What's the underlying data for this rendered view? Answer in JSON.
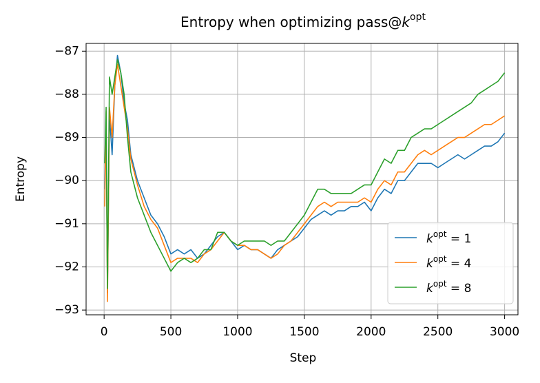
{
  "chart_data": {
    "type": "line",
    "title": {
      "text": "Entropy when optimizing pass@",
      "base": "k",
      "sup": "opt"
    },
    "x_label": "Step",
    "y_label": "Entropy",
    "x": [
      5,
      15,
      25,
      40,
      60,
      80,
      100,
      125,
      150,
      175,
      200,
      250,
      300,
      350,
      400,
      450,
      500,
      550,
      600,
      650,
      700,
      750,
      800,
      850,
      900,
      950,
      1000,
      1050,
      1100,
      1150,
      1200,
      1250,
      1300,
      1350,
      1400,
      1450,
      1500,
      1550,
      1600,
      1650,
      1700,
      1750,
      1800,
      1850,
      1900,
      1950,
      2000,
      2050,
      2100,
      2150,
      2200,
      2250,
      2300,
      2350,
      2400,
      2450,
      2500,
      2550,
      2600,
      2650,
      2700,
      2750,
      2800,
      2850,
      2900,
      2950,
      3000
    ],
    "series": [
      {
        "name": {
          "base": "k",
          "sup": "opt",
          "tail": " = 1"
        },
        "color": "#1f77b4",
        "values": [
          -90.2,
          -88.6,
          -92.6,
          -88.5,
          -89.4,
          -87.8,
          -87.1,
          -87.5,
          -88.2,
          -88.6,
          -89.4,
          -90.0,
          -90.4,
          -90.8,
          -91.0,
          -91.3,
          -91.7,
          -91.6,
          -91.7,
          -91.6,
          -91.8,
          -91.7,
          -91.5,
          -91.3,
          -91.2,
          -91.4,
          -91.6,
          -91.5,
          -91.6,
          -91.6,
          -91.7,
          -91.8,
          -91.6,
          -91.5,
          -91.4,
          -91.3,
          -91.1,
          -90.9,
          -90.8,
          -90.7,
          -90.8,
          -90.7,
          -90.7,
          -90.6,
          -90.6,
          -90.5,
          -90.7,
          -90.4,
          -90.2,
          -90.3,
          -90.0,
          -90.0,
          -89.8,
          -89.6,
          -89.6,
          -89.6,
          -89.7,
          -89.6,
          -89.5,
          -89.4,
          -89.5,
          -89.4,
          -89.3,
          -89.2,
          -89.2,
          -89.1,
          -88.9
        ]
      },
      {
        "name": {
          "base": "k",
          "sup": "opt",
          "tail": " = 4"
        },
        "color": "#ff7f0e",
        "values": [
          -90.6,
          -88.4,
          -92.8,
          -88.3,
          -89.0,
          -87.8,
          -87.3,
          -87.8,
          -88.3,
          -88.8,
          -89.5,
          -90.1,
          -90.6,
          -90.9,
          -91.1,
          -91.5,
          -91.9,
          -91.8,
          -91.8,
          -91.8,
          -91.9,
          -91.7,
          -91.6,
          -91.4,
          -91.2,
          -91.4,
          -91.5,
          -91.5,
          -91.6,
          -91.6,
          -91.7,
          -91.8,
          -91.7,
          -91.5,
          -91.4,
          -91.2,
          -91.0,
          -90.8,
          -90.6,
          -90.5,
          -90.6,
          -90.5,
          -90.5,
          -90.5,
          -90.5,
          -90.4,
          -90.5,
          -90.2,
          -90.0,
          -90.1,
          -89.8,
          -89.8,
          -89.6,
          -89.4,
          -89.3,
          -89.4,
          -89.3,
          -89.2,
          -89.1,
          -89.0,
          -89.0,
          -88.9,
          -88.8,
          -88.7,
          -88.7,
          -88.6,
          -88.5
        ]
      },
      {
        "name": {
          "base": "k",
          "sup": "opt",
          "tail": " = 8"
        },
        "color": "#2ca02c",
        "values": [
          -89.6,
          -88.3,
          -92.5,
          -87.6,
          -88.0,
          -87.6,
          -87.2,
          -87.5,
          -88.0,
          -89.0,
          -89.8,
          -90.4,
          -90.8,
          -91.2,
          -91.5,
          -91.8,
          -92.1,
          -91.9,
          -91.8,
          -91.9,
          -91.8,
          -91.6,
          -91.6,
          -91.2,
          -91.2,
          -91.4,
          -91.5,
          -91.4,
          -91.4,
          -91.4,
          -91.4,
          -91.5,
          -91.4,
          -91.4,
          -91.2,
          -91.0,
          -90.8,
          -90.5,
          -90.2,
          -90.2,
          -90.3,
          -90.3,
          -90.3,
          -90.3,
          -90.2,
          -90.1,
          -90.1,
          -89.8,
          -89.5,
          -89.6,
          -89.3,
          -89.3,
          -89.0,
          -88.9,
          -88.8,
          -88.8,
          -88.7,
          -88.6,
          -88.5,
          -88.4,
          -88.3,
          -88.2,
          -88.0,
          -87.9,
          -87.8,
          -87.7,
          -87.5
        ]
      }
    ],
    "xlim": [
      -135,
      3100
    ],
    "ylim": [
      -93.11,
      -86.82
    ],
    "xticks": [
      0,
      500,
      1000,
      1500,
      2000,
      2500,
      3000
    ],
    "yticks": [
      {
        "value": -93,
        "label": "−93"
      },
      {
        "value": -92,
        "label": "−92"
      },
      {
        "value": -91,
        "label": "−91"
      },
      {
        "value": -90,
        "label": "−90"
      },
      {
        "value": -89,
        "label": "−89"
      },
      {
        "value": -88,
        "label": "−88"
      },
      {
        "value": -87,
        "label": "−87"
      }
    ],
    "grid": true,
    "legend": "lower right"
  }
}
